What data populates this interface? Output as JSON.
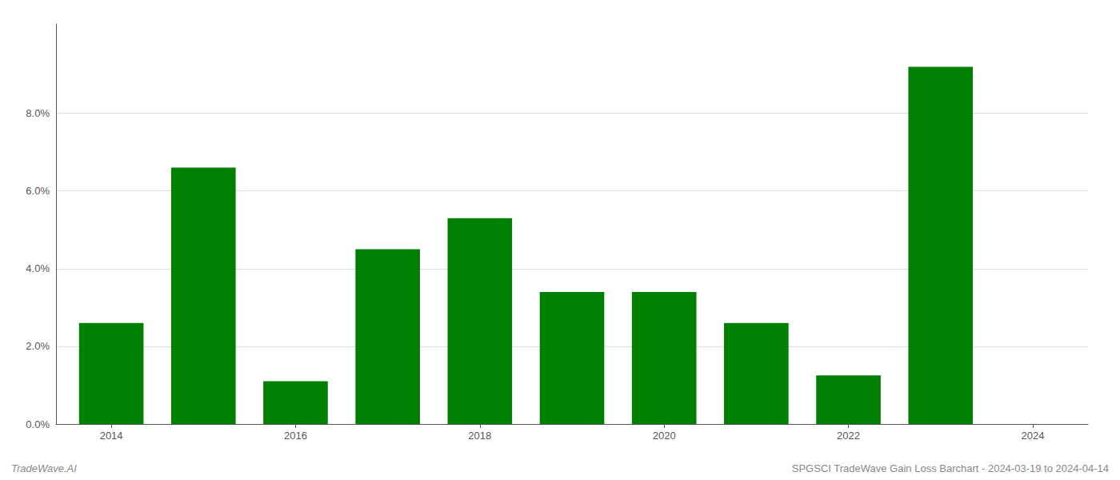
{
  "chart_data": {
    "type": "bar",
    "x": [
      2014,
      2015,
      2016,
      2017,
      2018,
      2019,
      2020,
      2021,
      2022,
      2023
    ],
    "values": [
      0.026,
      0.066,
      0.011,
      0.045,
      0.053,
      0.034,
      0.034,
      0.026,
      0.0125,
      0.092
    ],
    "color": "#008000",
    "xlim": [
      2013.4,
      2024.6
    ],
    "xticks": [
      2014,
      2016,
      2018,
      2020,
      2022,
      2024
    ],
    "ylim": [
      0,
      0.103
    ],
    "yticks": [
      {
        "value": 0.0,
        "label": "0.0%"
      },
      {
        "value": 0.02,
        "label": "2.0%"
      },
      {
        "value": 0.04,
        "label": "4.0%"
      },
      {
        "value": 0.06,
        "label": "6.0%"
      },
      {
        "value": 0.08,
        "label": "8.0%"
      }
    ],
    "grid": true,
    "annotations": [
      "TradeWave.AI",
      "SPGSCI TradeWave Gain Loss Barchart - 2024-03-19 to 2024-04-14"
    ]
  }
}
